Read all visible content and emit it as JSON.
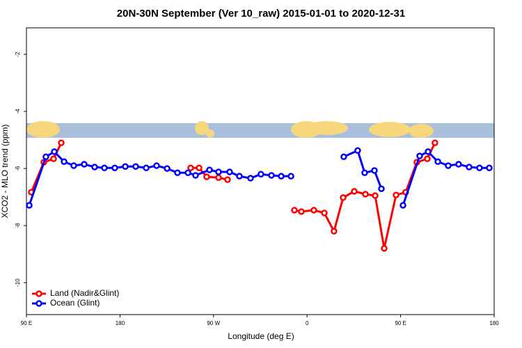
{
  "chart_data": {
    "type": "line",
    "title": "20N-30N September (Ver 10_raw)   2015-01-01 to 2020-12-31",
    "x_label": "Longitude (deg E)",
    "y_label": "XCO2 - MLO trend (ppm)",
    "xlim": [
      90,
      540
    ],
    "xticks": [
      {
        "value": 90,
        "label": "90 E"
      },
      {
        "value": 180,
        "label": "180"
      },
      {
        "value": 270,
        "label": "90 W"
      },
      {
        "value": 360,
        "label": "0"
      },
      {
        "value": 450,
        "label": "90 E"
      },
      {
        "value": 540,
        "label": "180"
      }
    ],
    "ylim": [
      -11.12,
      -1.07
    ],
    "yticks": [
      -10,
      -8,
      -6,
      -4,
      -2
    ],
    "legend": "bottom-left",
    "series": [
      {
        "name": "Land (Nadir&Glint)",
        "color": "#ff0000",
        "x": [
          94.7,
          106.7,
          116.1,
          123.5,
          null,
          248,
          256.1,
          263.4,
          274.8,
          283.5,
          null,
          347.8,
          354.5,
          366.5,
          376.6,
          385.9,
          394.7,
          405.4,
          416.1,
          425.5,
          434.2,
          445.6,
          454.9,
          465.6,
          475.7,
          483
        ],
        "values": [
          -6.83,
          -5.78,
          -5.66,
          -5.1,
          null,
          -5.98,
          -5.98,
          -6.29,
          -6.32,
          -6.39,
          null,
          -7.46,
          -7.51,
          -7.46,
          -7.56,
          -8.2,
          -7.02,
          -6.8,
          -6.9,
          -6.95,
          -8.8,
          -6.93,
          -6.83,
          -5.78,
          -5.66,
          -5.1
        ]
      },
      {
        "name": "Ocean (Glint)",
        "color": "#0000ff",
        "x": [
          92.7,
          108.7,
          116.8,
          126.2,
          135.5,
          145.6,
          155.6,
          165,
          175,
          185.1,
          195.1,
          205.2,
          215.2,
          225.3,
          235.3,
          245.4,
          252.7,
          266.1,
          274.8,
          285.5,
          294.9,
          305.6,
          315.6,
          325.7,
          335.1,
          344.5,
          null,
          395.3,
          408.7,
          415.4,
          424.8,
          431.5,
          null,
          452.3,
          468.3,
          476.4,
          485.8,
          495.8,
          505.8,
          515.9,
          525.9,
          535.3
        ],
        "values": [
          -7.29,
          -5.59,
          -5.41,
          -5.76,
          -5.9,
          -5.85,
          -5.95,
          -5.98,
          -5.98,
          -5.93,
          -5.93,
          -5.98,
          -5.9,
          -6.0,
          -6.15,
          -6.15,
          -6.24,
          -6.05,
          -6.12,
          -6.12,
          -6.27,
          -6.34,
          -6.2,
          -6.24,
          -6.27,
          -6.27,
          null,
          -5.59,
          -5.37,
          -6.15,
          -6.07,
          -6.71,
          null,
          -7.29,
          -5.56,
          -5.41,
          -5.76,
          -5.9,
          -5.85,
          -5.95,
          -5.98,
          -5.98
        ]
      }
    ]
  }
}
